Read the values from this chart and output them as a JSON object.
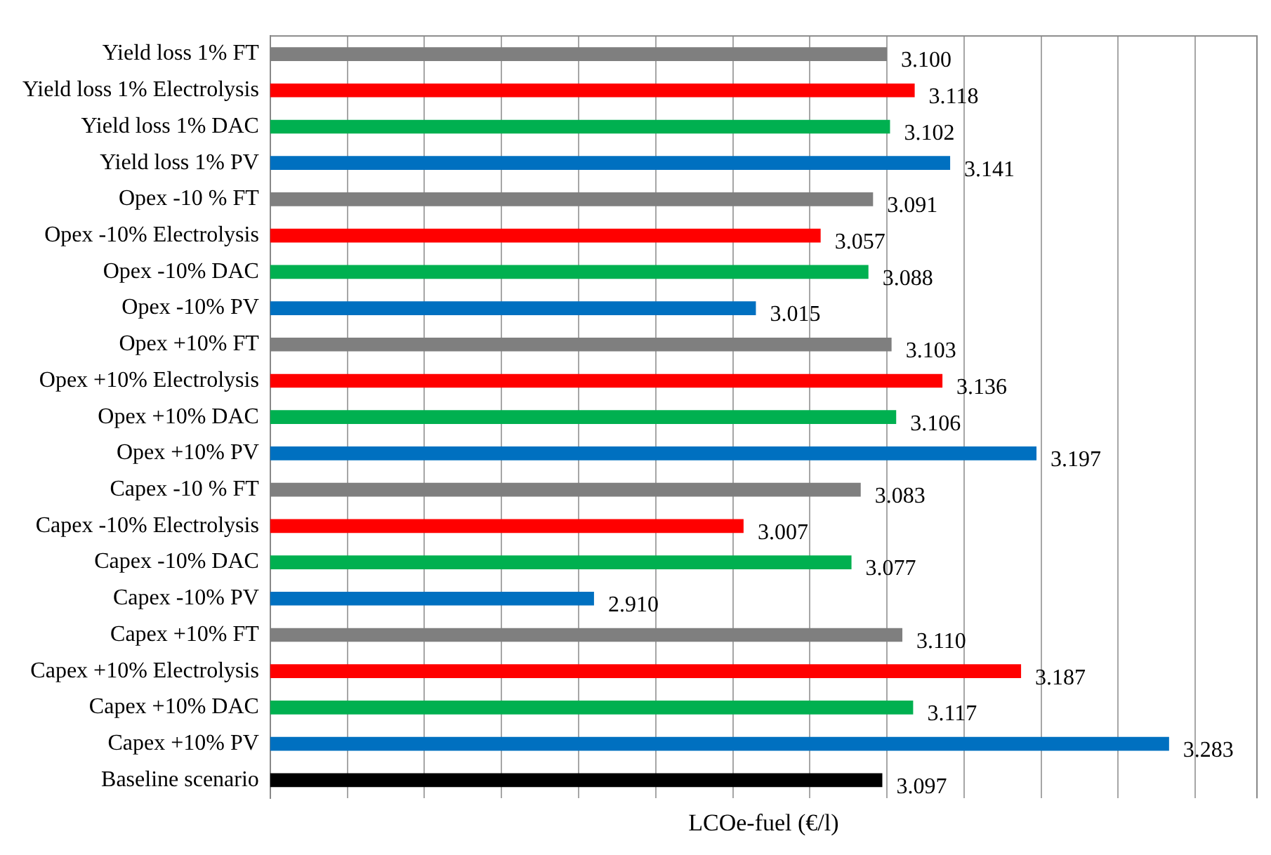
{
  "chart_data": {
    "type": "bar",
    "orientation": "horizontal",
    "xlabel": "LCOe-fuel (€/l)",
    "categories": [
      "Yield loss 1% FT",
      "Yield loss 1% Electrolysis",
      "Yield loss 1% DAC",
      "Yield loss 1% PV",
      "Opex -10 % FT",
      "Opex -10% Electrolysis",
      "Opex -10% DAC",
      "Opex -10% PV",
      "Opex +10% FT",
      "Opex +10% Electrolysis",
      "Opex +10% DAC",
      "Opex +10% PV",
      "Capex -10 % FT",
      "Capex -10% Electrolysis",
      "Capex -10% DAC",
      "Capex -10% PV",
      "Capex +10% FT",
      "Capex +10% Electrolysis",
      "Capex +10% DAC",
      "Capex +10% PV",
      "Baseline scenario"
    ],
    "values": [
      3.1,
      3.118,
      3.102,
      3.141,
      3.091,
      3.057,
      3.088,
      3.015,
      3.103,
      3.136,
      3.106,
      3.197,
      3.083,
      3.007,
      3.077,
      2.91,
      3.11,
      3.187,
      3.117,
      3.283,
      3.097
    ],
    "value_labels": [
      "3.100",
      "3.118",
      "3.102",
      "3.141",
      "3.091",
      "3.057",
      "3.088",
      "3.015",
      "3.103",
      "3.136",
      "3.106",
      "3.197",
      "3.083",
      "3.007",
      "3.077",
      "2.910",
      "3.110",
      "3.187",
      "3.117",
      "3.283",
      "3.097"
    ],
    "colors": [
      "#7f7f7f",
      "#ff0000",
      "#00b050",
      "#0070c0",
      "#7f7f7f",
      "#ff0000",
      "#00b050",
      "#0070c0",
      "#7f7f7f",
      "#ff0000",
      "#00b050",
      "#0070c0",
      "#7f7f7f",
      "#ff0000",
      "#00b050",
      "#0070c0",
      "#7f7f7f",
      "#ff0000",
      "#00b050",
      "#0070c0",
      "#000000"
    ],
    "xlim": [
      2.7,
      3.34
    ],
    "xticks": [
      {
        "value": 2.75,
        "label": null
      },
      {
        "value": 2.8,
        "label": null
      },
      {
        "value": 2.85,
        "label": null
      },
      {
        "value": 2.9,
        "label": null
      },
      {
        "value": 2.95,
        "label": null
      },
      {
        "value": 3.0,
        "label": null
      },
      {
        "value": 3.05,
        "label": null
      },
      {
        "value": 3.1,
        "label": null
      },
      {
        "value": 3.15,
        "label": null
      },
      {
        "value": 3.2,
        "label": null
      },
      {
        "value": 3.25,
        "label": null
      },
      {
        "value": 3.3,
        "label": null
      }
    ],
    "tick_labels": "y",
    "grid": "x",
    "legend": false
  }
}
